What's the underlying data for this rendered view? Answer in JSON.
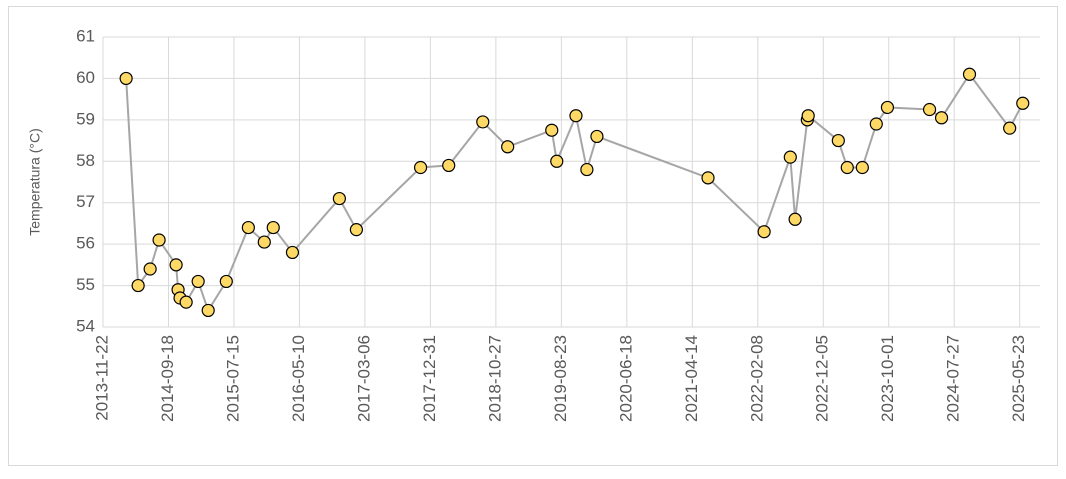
{
  "chart_data": {
    "type": "line",
    "y_label": "Temperatura (°C)",
    "x": [
      "2014-03-08",
      "2014-05-02",
      "2014-06-26",
      "2014-08-06",
      "2014-10-23",
      "2014-11-01",
      "2014-11-10",
      "2014-12-08",
      "2015-02-01",
      "2015-03-19",
      "2015-06-10",
      "2015-09-19",
      "2015-12-01",
      "2016-01-11",
      "2016-04-08",
      "2016-11-09",
      "2017-01-26",
      "2017-11-16",
      "2018-03-25",
      "2018-08-28",
      "2018-12-20",
      "2019-07-10",
      "2019-08-02",
      "2019-10-29",
      "2019-12-18",
      "2020-02-02",
      "2021-06-25",
      "2022-03-09",
      "2022-07-07",
      "2022-07-29",
      "2022-09-23",
      "2022-09-27",
      "2023-02-12",
      "2023-03-25",
      "2023-06-02",
      "2023-08-05",
      "2023-09-25",
      "2024-04-05",
      "2024-05-30",
      "2024-10-05",
      "2025-04-07",
      "2025-06-06"
    ],
    "series": [
      {
        "name": "Temperatura",
        "color": "#a6a6a6",
        "marker_color": "#ffd966",
        "values": [
          60.0,
          55.0,
          55.4,
          56.1,
          55.5,
          54.9,
          54.7,
          54.6,
          55.1,
          54.4,
          55.1,
          56.4,
          56.05,
          56.4,
          55.8,
          57.1,
          56.35,
          57.85,
          57.9,
          58.95,
          58.35,
          58.75,
          58.0,
          59.1,
          57.8,
          58.6,
          57.6,
          56.3,
          58.1,
          56.6,
          59.0,
          59.1,
          58.5,
          57.85,
          57.85,
          58.9,
          59.3,
          59.25,
          59.05,
          60.1,
          58.8,
          59.4
        ]
      }
    ],
    "xlim": [
      "2013-11-22",
      "2025-08-24"
    ],
    "xticks": [
      "2013-11-22",
      "2014-09-18",
      "2015-07-15",
      "2016-05-10",
      "2017-03-06",
      "2017-12-31",
      "2018-10-27",
      "2019-08-23",
      "2020-06-18",
      "2021-04-14",
      "2022-02-08",
      "2022-12-05",
      "2023-10-01",
      "2024-07-27",
      "2025-05-23"
    ],
    "ylim": [
      54,
      61
    ],
    "yticks": [
      54,
      55,
      56,
      57,
      58,
      59,
      60,
      61
    ],
    "grid": true
  }
}
